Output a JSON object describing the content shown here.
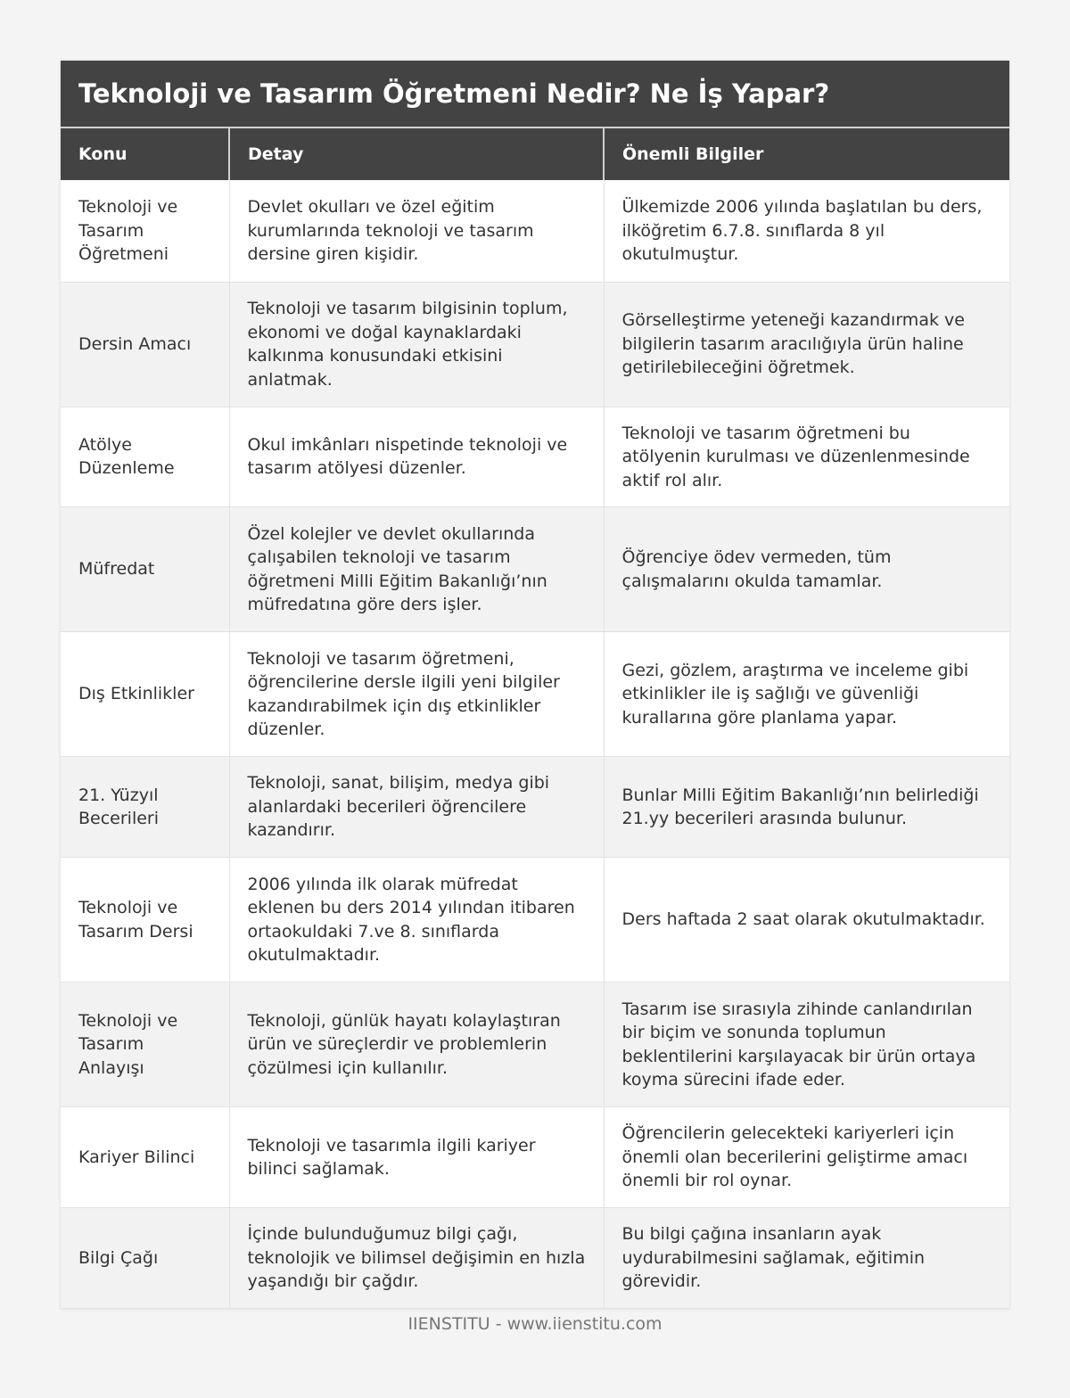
{
  "title": "Teknoloji ve Tasarım Öğretmeni Nedir? Ne İş Yapar?",
  "columns": [
    "Konu",
    "Detay",
    "Önemli Bilgiler"
  ],
  "rows": [
    [
      "Teknoloji ve Tasarım Öğretmeni",
      "Devlet okulları ve özel eğitim kurumlarında teknoloji ve tasarım dersine giren kişidir.",
      "Ülkemizde 2006 yılında başlatılan bu ders, ilköğretim 6.7.8. sınıflarda 8 yıl okutulmuştur."
    ],
    [
      "Dersin Amacı",
      "Teknoloji ve tasarım bilgisinin toplum, ekonomi ve doğal kaynaklardaki kalkınma konusundaki etkisini anlatmak.",
      "Görselleştirme yeteneği kazandırmak ve bilgilerin tasarım aracılığıyla ürün haline getirilebileceğini öğretmek."
    ],
    [
      "Atölye Düzenleme",
      "Okul imkânları nispetinde teknoloji ve tasarım atölyesi düzenler.",
      "Teknoloji ve tasarım öğretmeni bu atölyenin kurulması ve düzenlenmesinde aktif rol alır."
    ],
    [
      "Müfredat",
      "Özel kolejler ve devlet okullarında çalışabilen teknoloji ve tasarım öğretmeni Milli Eğitim Bakanlığı’nın müfredatına göre ders işler.",
      "Öğrenciye ödev vermeden, tüm çalışmalarını okulda tamamlar."
    ],
    [
      "Dış Etkinlikler",
      "Teknoloji ve tasarım öğretmeni, öğrencilerine dersle ilgili yeni bilgiler kazandırabilmek için dış etkinlikler düzenler.",
      "Gezi, gözlem, araştırma ve inceleme gibi etkinlikler ile iş sağlığı ve güvenliği kurallarına göre planlama yapar."
    ],
    [
      "21. Yüzyıl Becerileri",
      "Teknoloji, sanat, bilişim, medya gibi alanlardaki becerileri öğrencilere kazandırır.",
      "Bunlar Milli Eğitim Bakanlığı’nın belirlediği 21.yy becerileri arasında bulunur."
    ],
    [
      "Teknoloji ve Tasarım Dersi",
      "2006 yılında ilk olarak müfredat eklenen bu ders 2014 yılından itibaren ortaokuldaki 7.ve 8. sınıflarda okutulmaktadır.",
      "Ders haftada 2 saat olarak okutulmaktadır."
    ],
    [
      "Teknoloji ve Tasarım Anlayışı",
      "Teknoloji, günlük hayatı kolaylaştıran ürün ve süreçlerdir ve problemlerin çözülmesi için kullanılır.",
      "Tasarım ise sırasıyla zihinde canlandırılan bir biçim ve sonunda toplumun beklentilerini karşılayacak bir ürün ortaya koyma sürecini ifade eder."
    ],
    [
      "Kariyer Bilinci",
      "Teknoloji ve tasarımla ilgili kariyer bilinci sağlamak.",
      "Öğrencilerin gelecekteki kariyerleri için önemli olan becerilerini geliştirme amacı önemli bir rol oynar."
    ],
    [
      "Bilgi Çağı",
      "İçinde bulunduğumuz bilgi çağı, teknolojik ve bilimsel değişimin en hızla yaşandığı bir çağdır.",
      "Bu bilgi çağına insanların ayak uydurabilmesini sağlamak, eğitimin görevidir."
    ]
  ],
  "footer": "IIENSTITU - www.iienstitu.com"
}
